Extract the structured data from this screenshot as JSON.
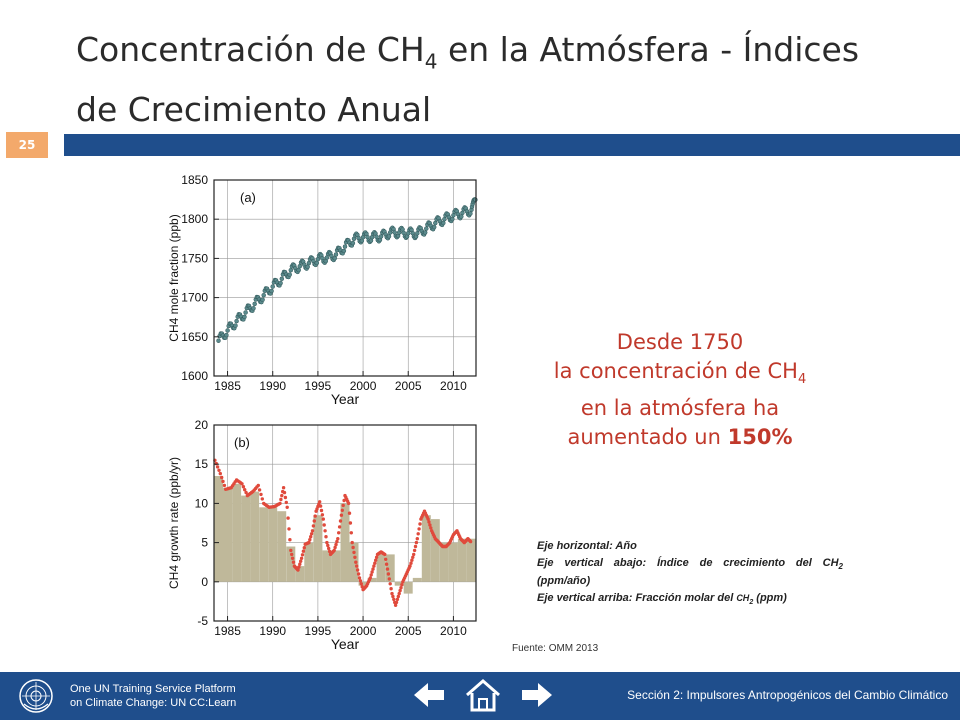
{
  "slide": {
    "title_line1_pre": "Concentración de CH",
    "title_line1_sub": "4",
    "title_line1_post": " en la Atmósfera - Índices",
    "title_line2": "de Crecimiento Anual",
    "page_number": "25"
  },
  "callout": {
    "line1": "Desde 1750",
    "line2_pre": "la concentración de CH",
    "line2_sub": "4",
    "line3": "en la atmósfera ha",
    "line4_pre": "aumentado un ",
    "line4_bold": "150%"
  },
  "notes": {
    "horizontal": "Eje horizontal: Año",
    "vertical_low_pre": "Eje vertical abajo: Índice de crecimiento del ",
    "vertical_low_chem": "CH",
    "vertical_low_sub": "2",
    "vertical_low_post": " (ppm/año)",
    "vertical_high_pre": "Eje vertical arriba: Fracción molar del ",
    "vertical_high_chem": "CH",
    "vertical_high_sub": "2",
    "vertical_high_post": " (ppm)"
  },
  "source": "Fuente: OMM 2013",
  "footer": {
    "left_line1": "One UN Training Service Platform",
    "left_line2": "on Climate Change: UN CC:Learn",
    "right": "Sección 2: Impulsores Antropogénicos del Cambio Climático",
    "back_icon": "arrow-left-icon",
    "home_icon": "home-icon",
    "next_icon": "arrow-right-icon"
  },
  "chart_data": [
    {
      "type": "scatter",
      "panel_label": "(a)",
      "xlabel": "Year",
      "ylabel": "CH4 mole fraction (ppb)",
      "xlim": [
        1983.5,
        2012.5
      ],
      "ylim": [
        1600,
        1850
      ],
      "xticks": [
        1985,
        1990,
        1995,
        2000,
        2005,
        2010
      ],
      "yticks": [
        1600,
        1650,
        1700,
        1750,
        1800,
        1850
      ],
      "grid": true,
      "point_color": "#5b8a8c",
      "x": [
        1984.0,
        1985.0,
        1986.0,
        1987.0,
        1988.0,
        1989.0,
        1990.0,
        1991.0,
        1992.0,
        1993.0,
        1994.0,
        1995.0,
        1996.0,
        1997.0,
        1998.0,
        1999.0,
        2000.0,
        2001.0,
        2002.0,
        2003.0,
        2004.0,
        2005.0,
        2006.0,
        2007.0,
        2008.0,
        2009.0,
        2010.0,
        2011.0,
        2012.0,
        2012.5
      ],
      "y": [
        1645,
        1658,
        1670,
        1681,
        1692,
        1703,
        1714,
        1724,
        1735,
        1740,
        1744,
        1749,
        1751,
        1755,
        1765,
        1775,
        1777,
        1777,
        1778,
        1783,
        1783,
        1782,
        1782,
        1788,
        1795,
        1800,
        1805,
        1808,
        1812,
        1824
      ]
    },
    {
      "type": "area",
      "panel_label": "(b)",
      "xlabel": "Year",
      "ylabel": "CH4 growth rate (ppb/yr)",
      "xlim": [
        1983.5,
        2012.5
      ],
      "ylim": [
        -5,
        20
      ],
      "xticks": [
        1985,
        1990,
        1995,
        2000,
        2005,
        2010
      ],
      "yticks": [
        -5,
        0,
        5,
        10,
        15,
        20
      ],
      "grid": true,
      "bar_color": "#bfb89a",
      "line_color": "#e04a3c",
      "bars_x": [
        1984,
        1985,
        1986,
        1987,
        1988,
        1989,
        1990,
        1991,
        1992,
        1993,
        1994,
        1995,
        1996,
        1997,
        1998,
        1999,
        2000,
        2001,
        2002,
        2003,
        2004,
        2005,
        2006,
        2007,
        2008,
        2009,
        2010,
        2011,
        2012
      ],
      "bars_y": [
        13.5,
        12.0,
        12.5,
        11.0,
        11.5,
        9.5,
        9.5,
        9.0,
        4.5,
        2.0,
        5.0,
        8.5,
        4.0,
        4.0,
        10.0,
        5.0,
        -0.5,
        0.5,
        3.5,
        3.5,
        -0.5,
        -1.5,
        0.5,
        8.5,
        8.0,
        5.0,
        5.0,
        5.5,
        5.5
      ],
      "line_x": [
        1983.6,
        1984.2,
        1984.8,
        1985.4,
        1986.0,
        1986.6,
        1987.2,
        1987.8,
        1988.4,
        1989.0,
        1989.6,
        1990.2,
        1990.8,
        1991.2,
        1991.6,
        1992.0,
        1992.4,
        1992.8,
        1993.2,
        1993.6,
        1994.0,
        1994.4,
        1994.8,
        1995.2,
        1995.6,
        1996.0,
        1996.4,
        1996.8,
        1997.2,
        1997.6,
        1998.0,
        1998.4,
        1998.8,
        1999.2,
        1999.6,
        2000.0,
        2000.4,
        2000.8,
        2001.2,
        2001.6,
        2002.0,
        2002.4,
        2002.8,
        2003.2,
        2003.6,
        2004.0,
        2004.4,
        2004.8,
        2005.2,
        2005.6,
        2006.0,
        2006.4,
        2006.8,
        2007.2,
        2007.6,
        2008.0,
        2008.4,
        2008.8,
        2009.2,
        2009.6,
        2010.0,
        2010.4,
        2010.8,
        2011.2,
        2011.6,
        2012.0
      ],
      "line_y": [
        15.5,
        13.8,
        11.8,
        12.0,
        13.0,
        12.5,
        11.0,
        11.5,
        12.3,
        10.0,
        9.5,
        9.6,
        10.0,
        12.0,
        9.5,
        4.0,
        2.0,
        1.5,
        3.0,
        4.8,
        5.0,
        6.5,
        9.0,
        10.2,
        8.0,
        5.0,
        3.5,
        4.0,
        5.5,
        8.5,
        11.0,
        10.0,
        5.0,
        2.5,
        0.5,
        -1.0,
        -0.5,
        0.5,
        2.0,
        3.5,
        3.8,
        3.5,
        1.0,
        -1.5,
        -3.0,
        -1.5,
        0.0,
        1.0,
        2.0,
        3.5,
        5.5,
        8.0,
        9.0,
        8.0,
        6.5,
        5.5,
        5.0,
        4.5,
        4.5,
        5.0,
        6.0,
        6.5,
        5.5,
        5.0,
        5.5,
        5.0
      ]
    }
  ]
}
